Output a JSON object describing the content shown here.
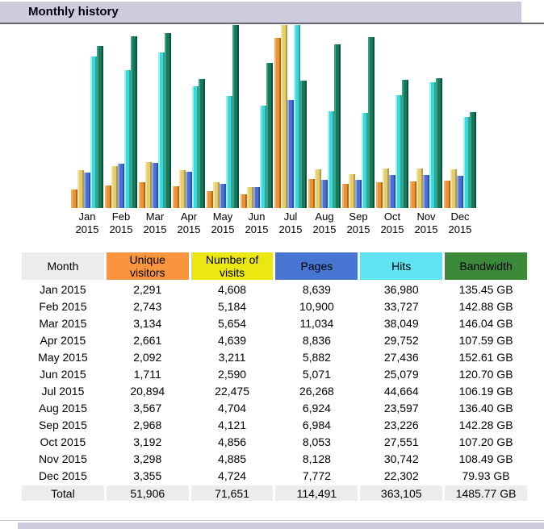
{
  "header": {
    "title": "Monthly history"
  },
  "colors": {
    "section_bar_bg": "#ccccdd",
    "section_bar_border": "#666677",
    "month_header_bg": "#ececec",
    "total_row_bg": "#ececec"
  },
  "chart_data": {
    "type": "bar",
    "title": "Monthly history",
    "xlabel": "",
    "ylabel": "",
    "legend_position": "none (legend is the table header below)",
    "grid": false,
    "categories": [
      "Jan 2015",
      "Feb 2015",
      "Mar 2015",
      "Apr 2015",
      "May 2015",
      "Jun 2015",
      "Jul 2015",
      "Aug 2015",
      "Sep 2015",
      "Oct 2015",
      "Nov 2015",
      "Dec 2015"
    ],
    "scaling_note": "Each scale group is normalized independently to full plot height: unique visitors + visits share one scale (max 22475), pages + hits share one scale (max 44664), bandwidth has its own scale (max 152.61 GB).",
    "series": [
      {
        "key": "unique-visitors",
        "name": "Unique visitors",
        "scale_group": "visits",
        "color": "#e8923a",
        "color_light": "#f2b163",
        "color_dark": "#ad6a1e",
        "values": [
          2291,
          2743,
          3134,
          2661,
          2092,
          1711,
          20894,
          3567,
          2968,
          3192,
          3298,
          3355
        ]
      },
      {
        "key": "number-of-visits",
        "name": "Number of visits",
        "scale_group": "visits",
        "color": "#e2ce6e",
        "color_light": "#efe09c",
        "color_dark": "#b29b41",
        "values": [
          4608,
          5184,
          5654,
          4639,
          3211,
          2590,
          22475,
          4704,
          4121,
          4856,
          4885,
          4724
        ]
      },
      {
        "key": "pages",
        "name": "Pages",
        "scale_group": "pageshits",
        "color": "#4d6fd1",
        "color_light": "#8ea6ea",
        "color_dark": "#3050a8",
        "values": [
          8639,
          10900,
          11034,
          8836,
          5882,
          5071,
          26268,
          6924,
          6984,
          8053,
          8128,
          7772
        ]
      },
      {
        "key": "hits",
        "name": "Hits",
        "scale_group": "pageshits",
        "color": "#3fd8d8",
        "color_light": "#9ff0f0",
        "color_dark": "#26a6a6",
        "values": [
          36980,
          33727,
          38049,
          29752,
          27436,
          25079,
          44664,
          23597,
          23226,
          27551,
          30742,
          22302
        ]
      },
      {
        "key": "bandwidth",
        "name": "Bandwidth (GB)",
        "scale_group": "bandwidth",
        "color": "#147a5b",
        "color_light": "#3f9f7f",
        "color_dark": "#0b523e",
        "values": [
          135.45,
          142.88,
          146.04,
          107.59,
          152.61,
          120.7,
          106.19,
          136.4,
          142.28,
          107.2,
          108.49,
          79.93
        ]
      }
    ]
  },
  "table": {
    "columns": [
      {
        "key": "month",
        "label": "Month",
        "lines": [
          "Month"
        ],
        "bg": "#ececec"
      },
      {
        "key": "unique-visitors",
        "label": "Unique visitors",
        "lines": [
          "Unique",
          "visitors"
        ],
        "bg": "#f9943f"
      },
      {
        "key": "number-of-visits",
        "label": "Number of visits",
        "lines": [
          "Number of",
          "visits"
        ],
        "bg": "#ebe711"
      },
      {
        "key": "pages",
        "label": "Pages",
        "lines": [
          "Pages"
        ],
        "bg": "#4676d2"
      },
      {
        "key": "hits",
        "label": "Hits",
        "lines": [
          "Hits"
        ],
        "bg": "#5fe2f2"
      },
      {
        "key": "bandwidth",
        "label": "Bandwidth",
        "lines": [
          "Bandwidth"
        ],
        "bg": "#3a8a3a"
      }
    ],
    "rows": [
      [
        "Jan 2015",
        "2,291",
        "4,608",
        "8,639",
        "36,980",
        "135.45 GB"
      ],
      [
        "Feb 2015",
        "2,743",
        "5,184",
        "10,900",
        "33,727",
        "142.88 GB"
      ],
      [
        "Mar 2015",
        "3,134",
        "5,654",
        "11,034",
        "38,049",
        "146.04 GB"
      ],
      [
        "Apr 2015",
        "2,661",
        "4,639",
        "8,836",
        "29,752",
        "107.59 GB"
      ],
      [
        "May 2015",
        "2,092",
        "3,211",
        "5,882",
        "27,436",
        "152.61 GB"
      ],
      [
        "Jun 2015",
        "1,711",
        "2,590",
        "5,071",
        "25,079",
        "120.70 GB"
      ],
      [
        "Jul 2015",
        "20,894",
        "22,475",
        "26,268",
        "44,664",
        "106.19 GB"
      ],
      [
        "Aug 2015",
        "3,567",
        "4,704",
        "6,924",
        "23,597",
        "136.40 GB"
      ],
      [
        "Sep 2015",
        "2,968",
        "4,121",
        "6,984",
        "23,226",
        "142.28 GB"
      ],
      [
        "Oct 2015",
        "3,192",
        "4,856",
        "8,053",
        "27,551",
        "107.20 GB"
      ],
      [
        "Nov 2015",
        "3,298",
        "4,885",
        "8,128",
        "30,742",
        "108.49 GB"
      ],
      [
        "Dec 2015",
        "3,355",
        "4,724",
        "7,772",
        "22,302",
        "79.93 GB"
      ]
    ],
    "total": [
      "Total",
      "51,906",
      "71,651",
      "114,491",
      "363,105",
      "1485.77 GB"
    ]
  }
}
